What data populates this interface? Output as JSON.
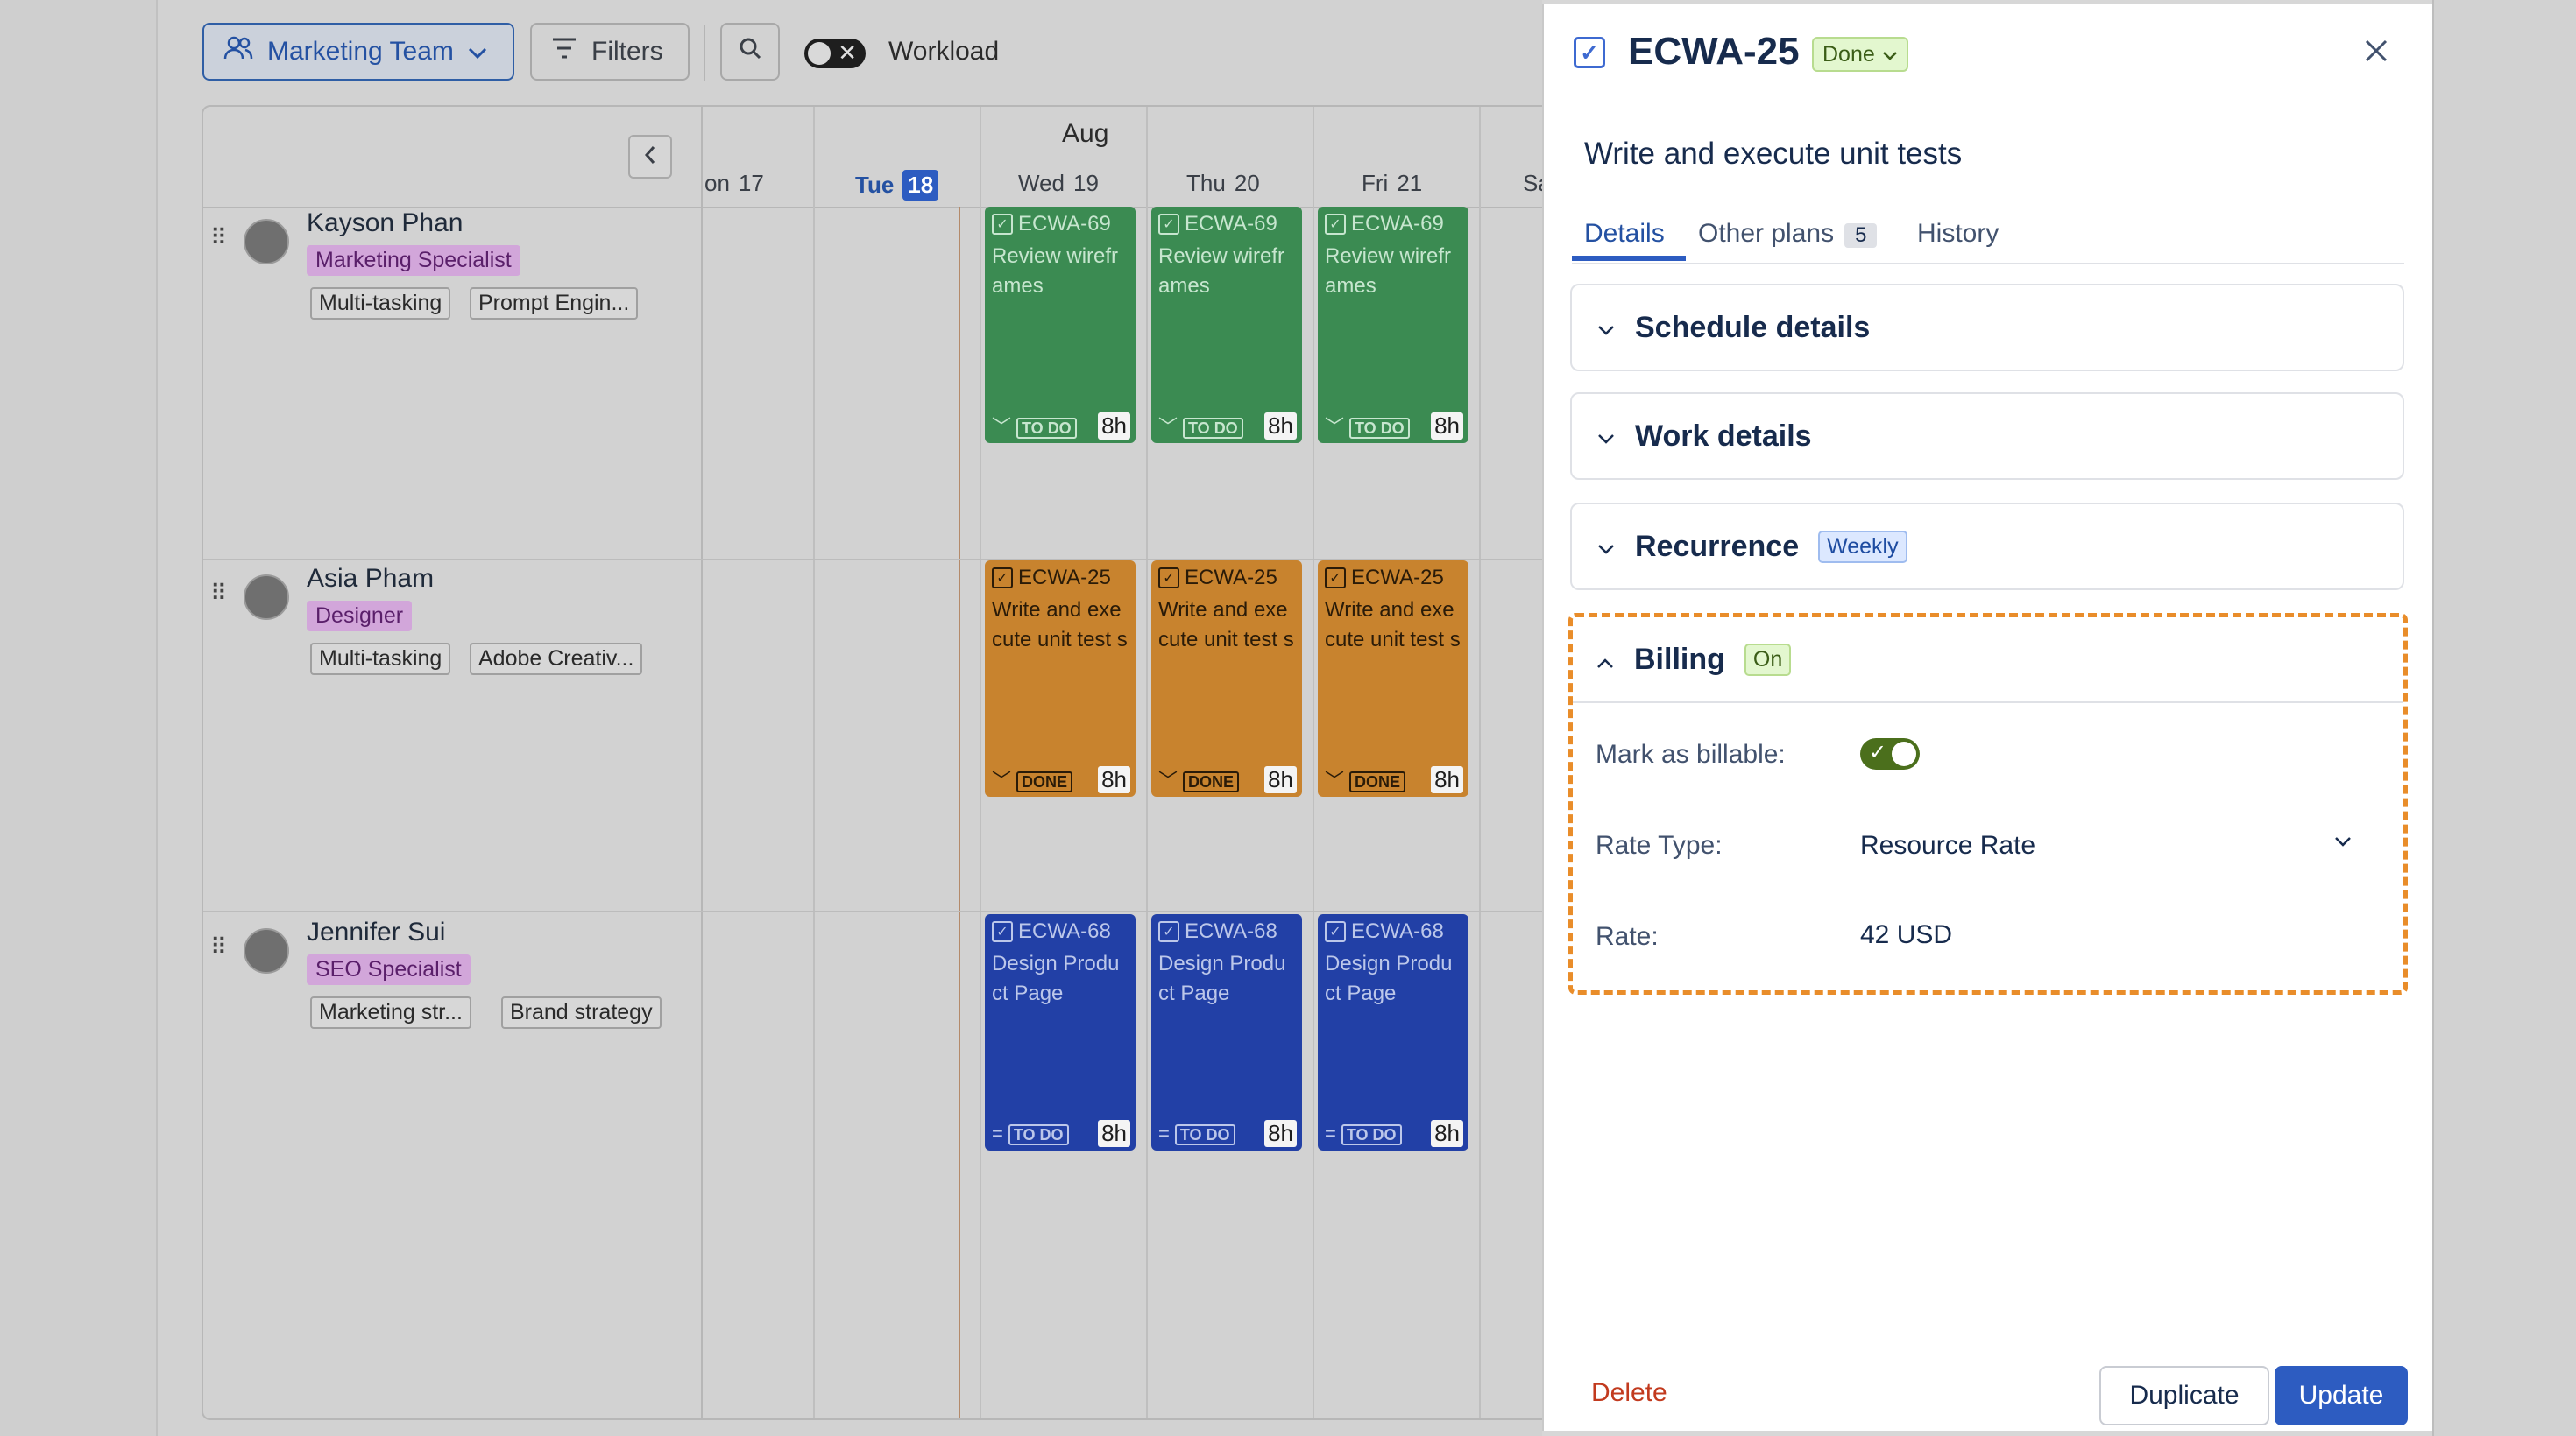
{
  "toolbar": {
    "team_label": "Marketing Team",
    "filters_label": "Filters",
    "workload_label": "Workload"
  },
  "calendar": {
    "month": "Aug",
    "days": [
      {
        "dow": "on",
        "num": "17"
      },
      {
        "dow": "Tue",
        "num": "18"
      },
      {
        "dow": "Wed",
        "num": "19"
      },
      {
        "dow": "Thu",
        "num": "20"
      },
      {
        "dow": "Fri",
        "num": "21"
      },
      {
        "dow": "Sa",
        "num": ""
      }
    ]
  },
  "people": [
    {
      "name": "Kayson Phan",
      "role": "Marketing Specialist",
      "skills": [
        "Multi-tasking",
        "Prompt Engin..."
      ],
      "task": {
        "code": "ECWA-69",
        "title": "Review wirefr ames",
        "status": "TO DO",
        "hours": "8h"
      }
    },
    {
      "name": "Asia Pham",
      "role": "Designer",
      "skills": [
        "Multi-tasking",
        "Adobe Creativ..."
      ],
      "task": {
        "code": "ECWA-25",
        "title": "Write and exe cute unit test s",
        "status": "DONE",
        "hours": "8h"
      }
    },
    {
      "name": "Jennifer Sui",
      "role": "SEO Specialist",
      "skills": [
        "Marketing str...",
        "Brand strategy"
      ],
      "task": {
        "code": "ECWA-68",
        "title": "Design Produ ct Page",
        "status": "TO DO",
        "hours": "8h"
      }
    }
  ],
  "panel": {
    "key": "ECWA-25",
    "status": "Done",
    "summary": "Write and execute unit tests",
    "tabs": {
      "details": "Details",
      "other_plans": "Other plans",
      "other_plans_count": "5",
      "history": "History"
    },
    "sections": {
      "schedule": "Schedule details",
      "work": "Work details",
      "recurrence": "Recurrence",
      "recurrence_badge": "Weekly"
    },
    "billing": {
      "title": "Billing",
      "badge": "On",
      "billable_label": "Mark as billable:",
      "billable": true,
      "rate_type_label": "Rate Type:",
      "rate_type_value": "Resource Rate",
      "rate_label": "Rate:",
      "rate_value": "42 USD"
    },
    "actions": {
      "delete": "Delete",
      "duplicate": "Duplicate",
      "update": "Update"
    }
  },
  "colors": {
    "accent": "#2d5cc1",
    "green_card": "#3b8b52",
    "orange_card": "#c8832e",
    "blue_card": "#2240a6",
    "highlight": "#e98d2a"
  }
}
